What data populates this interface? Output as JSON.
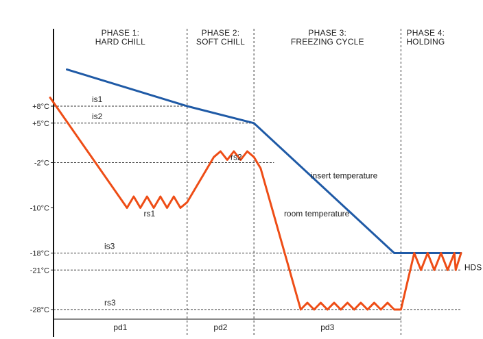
{
  "chart_data": {
    "type": "line",
    "title": "",
    "xlabel": "",
    "ylabel": "",
    "ylim": [
      -30,
      16
    ],
    "x_range": [
      0,
      61
    ],
    "grid": false,
    "legend": "none",
    "colors": {
      "insert": "#1f5aa6",
      "room": "#ee4d16",
      "axis": "#111111",
      "guide": "#333333"
    },
    "phases": [
      {
        "label": [
          "PHASE 1:",
          "HARD CHILL"
        ],
        "start": 0,
        "end": 20
      },
      {
        "label": [
          "PHASE 2:",
          "SOFT CHILL"
        ],
        "start": 20,
        "end": 30
      },
      {
        "label": [
          "PHASE 3:",
          "FREEZING CYCLE"
        ],
        "start": 30,
        "end": 52
      },
      {
        "label": [
          "PHASE 4:",
          "HOLDING"
        ],
        "start": 52,
        "end": 61
      }
    ],
    "y_ticks": [
      {
        "value": 8,
        "label": "+8°C"
      },
      {
        "value": 5,
        "label": "+5°C"
      },
      {
        "value": -2,
        "label": "-2°C"
      },
      {
        "value": -10,
        "label": "-10°C"
      },
      {
        "value": -18,
        "label": "-18°C"
      },
      {
        "value": -21,
        "label": "-21°C"
      },
      {
        "value": -28,
        "label": "-28°C"
      }
    ],
    "setpoints": [
      {
        "label": "is1",
        "value": 8,
        "x_end": 20
      },
      {
        "label": "is2",
        "value": 5,
        "x_end": 30
      },
      {
        "label": "",
        "value": -2,
        "x_end": 33
      },
      {
        "label": "is3",
        "value": -18,
        "x_end": 61
      },
      {
        "label": "",
        "value": -21,
        "x_end": 61
      },
      {
        "label": "rs3",
        "value": -28,
        "x_end": 61
      }
    ],
    "point_labels": [
      {
        "text": "rs1",
        "x": 13.5,
        "y": -11.5
      },
      {
        "text": "rs2",
        "x": 26.5,
        "y": -1.5
      },
      {
        "text": "HDS",
        "x": 61.5,
        "y": -21
      }
    ],
    "duration_labels": [
      {
        "text": "pd1",
        "x": 10
      },
      {
        "text": "pd2",
        "x": 25
      },
      {
        "text": "pd3",
        "x": 41
      }
    ],
    "series": [
      {
        "name": "insert temperature",
        "label_at": {
          "x": 38.5,
          "y": -4.8
        },
        "points": [
          [
            2,
            14.5
          ],
          [
            20,
            8
          ],
          [
            30,
            5
          ],
          [
            51,
            -18
          ],
          [
            61,
            -18
          ]
        ]
      },
      {
        "name": "room temperature",
        "label_at": {
          "x": 34.5,
          "y": -11.5
        },
        "points": [
          [
            -0.5,
            9.5
          ],
          [
            11,
            -10
          ],
          [
            12,
            -8
          ],
          [
            13,
            -10
          ],
          [
            14,
            -8
          ],
          [
            15,
            -10
          ],
          [
            16,
            -8
          ],
          [
            17,
            -10
          ],
          [
            18,
            -8
          ],
          [
            19,
            -10
          ],
          [
            20,
            -9
          ],
          [
            24,
            -1
          ],
          [
            25,
            0
          ],
          [
            26,
            -1.5
          ],
          [
            27,
            0
          ],
          [
            28,
            -1.5
          ],
          [
            29,
            0
          ],
          [
            30,
            -1
          ],
          [
            31,
            -3
          ],
          [
            37,
            -28
          ],
          [
            38,
            -26.8
          ],
          [
            39,
            -28
          ],
          [
            40,
            -26.8
          ],
          [
            41,
            -28
          ],
          [
            42,
            -26.8
          ],
          [
            43,
            -28
          ],
          [
            44,
            -26.8
          ],
          [
            45,
            -28
          ],
          [
            46,
            -26.8
          ],
          [
            47,
            -28
          ],
          [
            48,
            -26.8
          ],
          [
            49,
            -28
          ],
          [
            50,
            -26.8
          ],
          [
            51,
            -28
          ],
          [
            52,
            -28
          ],
          [
            54,
            -18
          ],
          [
            55,
            -21
          ],
          [
            56,
            -18
          ],
          [
            57,
            -21
          ],
          [
            58,
            -18
          ],
          [
            59,
            -21
          ],
          [
            60,
            -18
          ],
          [
            60.2,
            -21
          ],
          [
            61,
            -18
          ]
        ]
      }
    ]
  }
}
